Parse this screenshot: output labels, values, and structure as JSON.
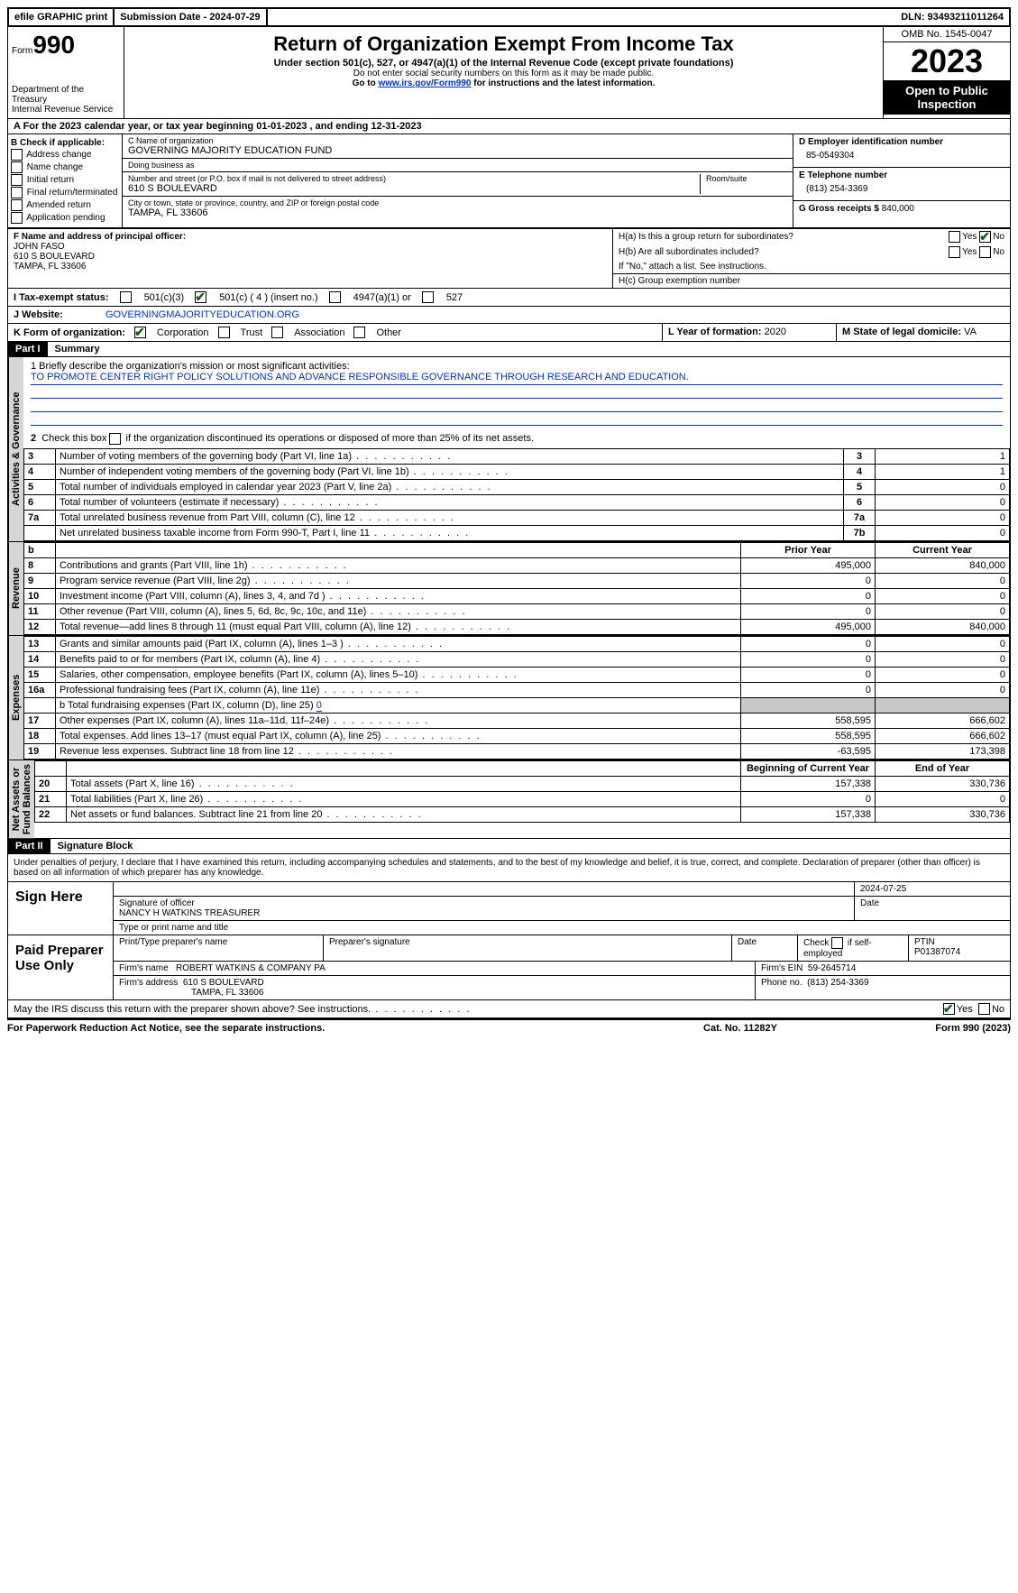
{
  "topbar": {
    "efile": "efile GRAPHIC print",
    "submission": "Submission Date - 2024-07-29",
    "dln": "DLN: 93493211011264"
  },
  "header": {
    "form_prefix": "Form",
    "form_no": "990",
    "dept": "Department of the Treasury\nInternal Revenue Service",
    "title": "Return of Organization Exempt From Income Tax",
    "sub": "Under section 501(c), 527, or 4947(a)(1) of the Internal Revenue Code (except private foundations)",
    "small1": "Do not enter social security numbers on this form as it may be made public.",
    "small2a": "Go to ",
    "link": "www.irs.gov/Form990",
    "small2b": " for instructions and the latest information.",
    "omb": "OMB No. 1545-0047",
    "year": "2023",
    "inspection": "Open to Public Inspection"
  },
  "rowA": "A   For the 2023 calendar year, or tax year beginning 01-01-2023    , and ending 12-31-2023",
  "boxB": {
    "title": "B Check if applicable:",
    "items": [
      "Address change",
      "Name change",
      "Initial return",
      "Final return/terminated",
      "Amended return",
      "Application pending"
    ]
  },
  "boxC": {
    "name_label": "C Name of organization",
    "name": "GOVERNING MAJORITY EDUCATION FUND",
    "dba_label": "Doing business as",
    "dba": "",
    "street_label": "Number and street (or P.O. box if mail is not delivered to street address)",
    "street": "610 S BOULEVARD",
    "room_label": "Room/suite",
    "city_label": "City or town, state or province, country, and ZIP or foreign postal code",
    "city": "TAMPA, FL  33606"
  },
  "boxD": {
    "label": "D Employer identification number",
    "val": "85-0549304"
  },
  "boxE": {
    "label": "E Telephone number",
    "val": "(813) 254-3369"
  },
  "boxG": {
    "label": "G Gross receipts $",
    "val": "840,000"
  },
  "boxF": {
    "label": "F  Name and address of principal officer:",
    "name": "JOHN FASO",
    "addr1": "610 S BOULEVARD",
    "addr2": "TAMPA, FL  33606"
  },
  "boxH": {
    "a_label": "H(a)  Is this a group return for subordinates?",
    "b_label": "H(b)  Are all subordinates included?",
    "note": "If \"No,\" attach a list. See instructions.",
    "c_label": "H(c)  Group exemption number",
    "yes": "Yes",
    "no": "No"
  },
  "rowI": {
    "label": "I   Tax-exempt status:",
    "opts": [
      "501(c)(3)",
      "501(c) ( 4 ) (insert no.)",
      "4947(a)(1) or",
      "527"
    ]
  },
  "rowJ": {
    "label": "J   Website:",
    "val": "GOVERNINGMAJORITYEDUCATION.ORG"
  },
  "rowK": {
    "label": "K Form of organization:",
    "opts": [
      "Corporation",
      "Trust",
      "Association",
      "Other"
    ]
  },
  "rowL": {
    "label": "L Year of formation:",
    "val": "2020"
  },
  "rowM": {
    "label": "M State of legal domicile:",
    "val": "VA"
  },
  "part1": {
    "header": "Part I",
    "title": "Summary"
  },
  "mission": {
    "label": "1   Briefly describe the organization's mission or most significant activities:",
    "text": "TO PROMOTE CENTER RIGHT POLICY SOLUTIONS AND ADVANCE RESPONSIBLE GOVERNANCE THROUGH RESEARCH AND EDUCATION."
  },
  "line2": "2   Check this box        if the organization discontinued its operations or disposed of more than 25% of its net assets.",
  "gov_rows": [
    {
      "n": "3",
      "d": "Number of voting members of the governing body (Part VI, line 1a)",
      "box": "3",
      "v": "1"
    },
    {
      "n": "4",
      "d": "Number of independent voting members of the governing body (Part VI, line 1b)",
      "box": "4",
      "v": "1"
    },
    {
      "n": "5",
      "d": "Total number of individuals employed in calendar year 2023 (Part V, line 2a)",
      "box": "5",
      "v": "0"
    },
    {
      "n": "6",
      "d": "Total number of volunteers (estimate if necessary)",
      "box": "6",
      "v": "0"
    },
    {
      "n": "7a",
      "d": "Total unrelated business revenue from Part VIII, column (C), line 12",
      "box": "7a",
      "v": "0"
    },
    {
      "n": "",
      "d": "Net unrelated business taxable income from Form 990-T, Part I, line 11",
      "box": "7b",
      "v": "0"
    }
  ],
  "col_b": "b",
  "prior_year": "Prior Year",
  "current_year": "Current Year",
  "rev_rows": [
    {
      "n": "8",
      "d": "Contributions and grants (Part VIII, line 1h)",
      "p": "495,000",
      "c": "840,000"
    },
    {
      "n": "9",
      "d": "Program service revenue (Part VIII, line 2g)",
      "p": "0",
      "c": "0"
    },
    {
      "n": "10",
      "d": "Investment income (Part VIII, column (A), lines 3, 4, and 7d )",
      "p": "0",
      "c": "0"
    },
    {
      "n": "11",
      "d": "Other revenue (Part VIII, column (A), lines 5, 6d, 8c, 9c, 10c, and 11e)",
      "p": "0",
      "c": "0"
    },
    {
      "n": "12",
      "d": "Total revenue—add lines 8 through 11 (must equal Part VIII, column (A), line 12)",
      "p": "495,000",
      "c": "840,000"
    }
  ],
  "exp_rows": [
    {
      "n": "13",
      "d": "Grants and similar amounts paid (Part IX, column (A), lines 1–3 )",
      "p": "0",
      "c": "0"
    },
    {
      "n": "14",
      "d": "Benefits paid to or for members (Part IX, column (A), line 4)",
      "p": "0",
      "c": "0"
    },
    {
      "n": "15",
      "d": "Salaries, other compensation, employee benefits (Part IX, column (A), lines 5–10)",
      "p": "0",
      "c": "0"
    },
    {
      "n": "16a",
      "d": "Professional fundraising fees (Part IX, column (A), line 11e)",
      "p": "0",
      "c": "0"
    }
  ],
  "exp_16b_label": "b   Total fundraising expenses (Part IX, column (D), line 25)",
  "exp_16b_val": "0",
  "exp_rows2": [
    {
      "n": "17",
      "d": "Other expenses (Part IX, column (A), lines 11a–11d, 11f–24e)",
      "p": "558,595",
      "c": "666,602"
    },
    {
      "n": "18",
      "d": "Total expenses. Add lines 13–17 (must equal Part IX, column (A), line 25)",
      "p": "558,595",
      "c": "666,602"
    },
    {
      "n": "19",
      "d": "Revenue less expenses. Subtract line 18 from line 12",
      "p": "-63,595",
      "c": "173,398"
    }
  ],
  "na_header_p": "Beginning of Current Year",
  "na_header_c": "End of Year",
  "na_rows": [
    {
      "n": "20",
      "d": "Total assets (Part X, line 16)",
      "p": "157,338",
      "c": "330,736"
    },
    {
      "n": "21",
      "d": "Total liabilities (Part X, line 26)",
      "p": "0",
      "c": "0"
    },
    {
      "n": "22",
      "d": "Net assets or fund balances. Subtract line 21 from line 20",
      "p": "157,338",
      "c": "330,736"
    }
  ],
  "vtabs": {
    "gov": "Activities & Governance",
    "rev": "Revenue",
    "exp": "Expenses",
    "na": "Net Assets or\nFund Balances"
  },
  "part2": {
    "header": "Part II",
    "title": "Signature Block"
  },
  "declare": "Under penalties of perjury, I declare that I have examined this return, including accompanying schedules and statements, and to the best of my knowledge and belief, it is true, correct, and complete. Declaration of preparer (other than officer) is based on all information of which preparer has any knowledge.",
  "sign": {
    "left": "Sign Here",
    "sig_label": "Signature of officer",
    "date_label": "Date",
    "date": "2024-07-25",
    "officer": "NANCY H WATKINS  TREASURER",
    "type_label": "Type or print name and title"
  },
  "preparer": {
    "left": "Paid Preparer Use Only",
    "h1": "Print/Type preparer's name",
    "h2": "Preparer's signature",
    "h3": "Date",
    "h4a": "Check",
    "h4b": "if self-employed",
    "h5": "PTIN",
    "ptin": "P01387074",
    "firm_label": "Firm's name",
    "firm": "ROBERT WATKINS & COMPANY PA",
    "ein_label": "Firm's EIN",
    "ein": "59-2645714",
    "addr_label": "Firm's address",
    "addr1": "610 S BOULEVARD",
    "addr2": "TAMPA, FL  33606",
    "phone_label": "Phone no.",
    "phone": "(813) 254-3369"
  },
  "discuss": {
    "text": "May the IRS discuss this return with the preparer shown above? See instructions.",
    "yes": "Yes",
    "no": "No"
  },
  "footer": {
    "left": "For Paperwork Reduction Act Notice, see the separate instructions.",
    "mid": "Cat. No. 11282Y",
    "right_a": "Form ",
    "right_b": "990",
    "right_c": " (2023)"
  }
}
